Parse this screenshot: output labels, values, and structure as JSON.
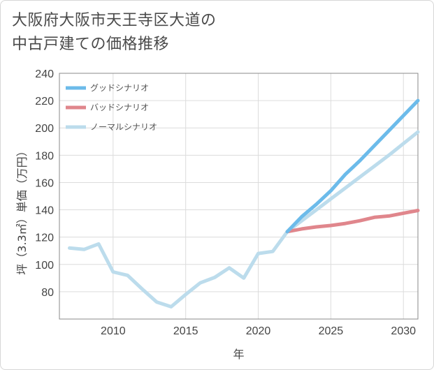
{
  "title_lines": [
    "大阪府大阪市天王寺区大道の",
    "中古戸建ての価格推移"
  ],
  "chart_data": {
    "type": "line",
    "title": "大阪府大阪市天王寺区大道の中古戸建ての価格推移",
    "xlabel": "年",
    "ylabel": "坪（3.3㎡）単価（万円）",
    "xlim": [
      2006.3,
      2031
    ],
    "ylim": [
      60,
      240
    ],
    "xticks": [
      2010,
      2015,
      2020,
      2025,
      2030
    ],
    "yticks": [
      80,
      100,
      120,
      140,
      160,
      180,
      200,
      220,
      240
    ],
    "grid": true,
    "legend_position": "top-left",
    "series": [
      {
        "name": "グッドシナリオ",
        "color": "#6cbbea",
        "x": [
          2022,
          2023,
          2024,
          2025,
          2026,
          2027,
          2028,
          2029,
          2030,
          2031
        ],
        "values": [
          124,
          135,
          144,
          154,
          166,
          176,
          187,
          198,
          209,
          220
        ]
      },
      {
        "name": "バッドシナリオ",
        "color": "#e0868c",
        "x": [
          2022,
          2023,
          2024,
          2025,
          2026,
          2027,
          2028,
          2029,
          2030,
          2031
        ],
        "values": [
          124,
          126,
          127.5,
          128.5,
          130,
          132,
          134.5,
          135.5,
          137.5,
          139.5
        ]
      },
      {
        "name": "ノーマルシナリオ",
        "color": "#bcdcec",
        "x": [
          2007,
          2008,
          2009,
          2010,
          2011,
          2012,
          2013,
          2014,
          2015,
          2016,
          2017,
          2018,
          2019,
          2020,
          2021,
          2022,
          2023,
          2024,
          2025,
          2026,
          2027,
          2028,
          2029,
          2030,
          2031
        ],
        "values": [
          112,
          111,
          115,
          94.5,
          92,
          82,
          72.5,
          69,
          78,
          86.5,
          90.5,
          97.5,
          90,
          108,
          109.5,
          124,
          132,
          140,
          148,
          156,
          164,
          172,
          180,
          188.5,
          197
        ]
      }
    ]
  }
}
